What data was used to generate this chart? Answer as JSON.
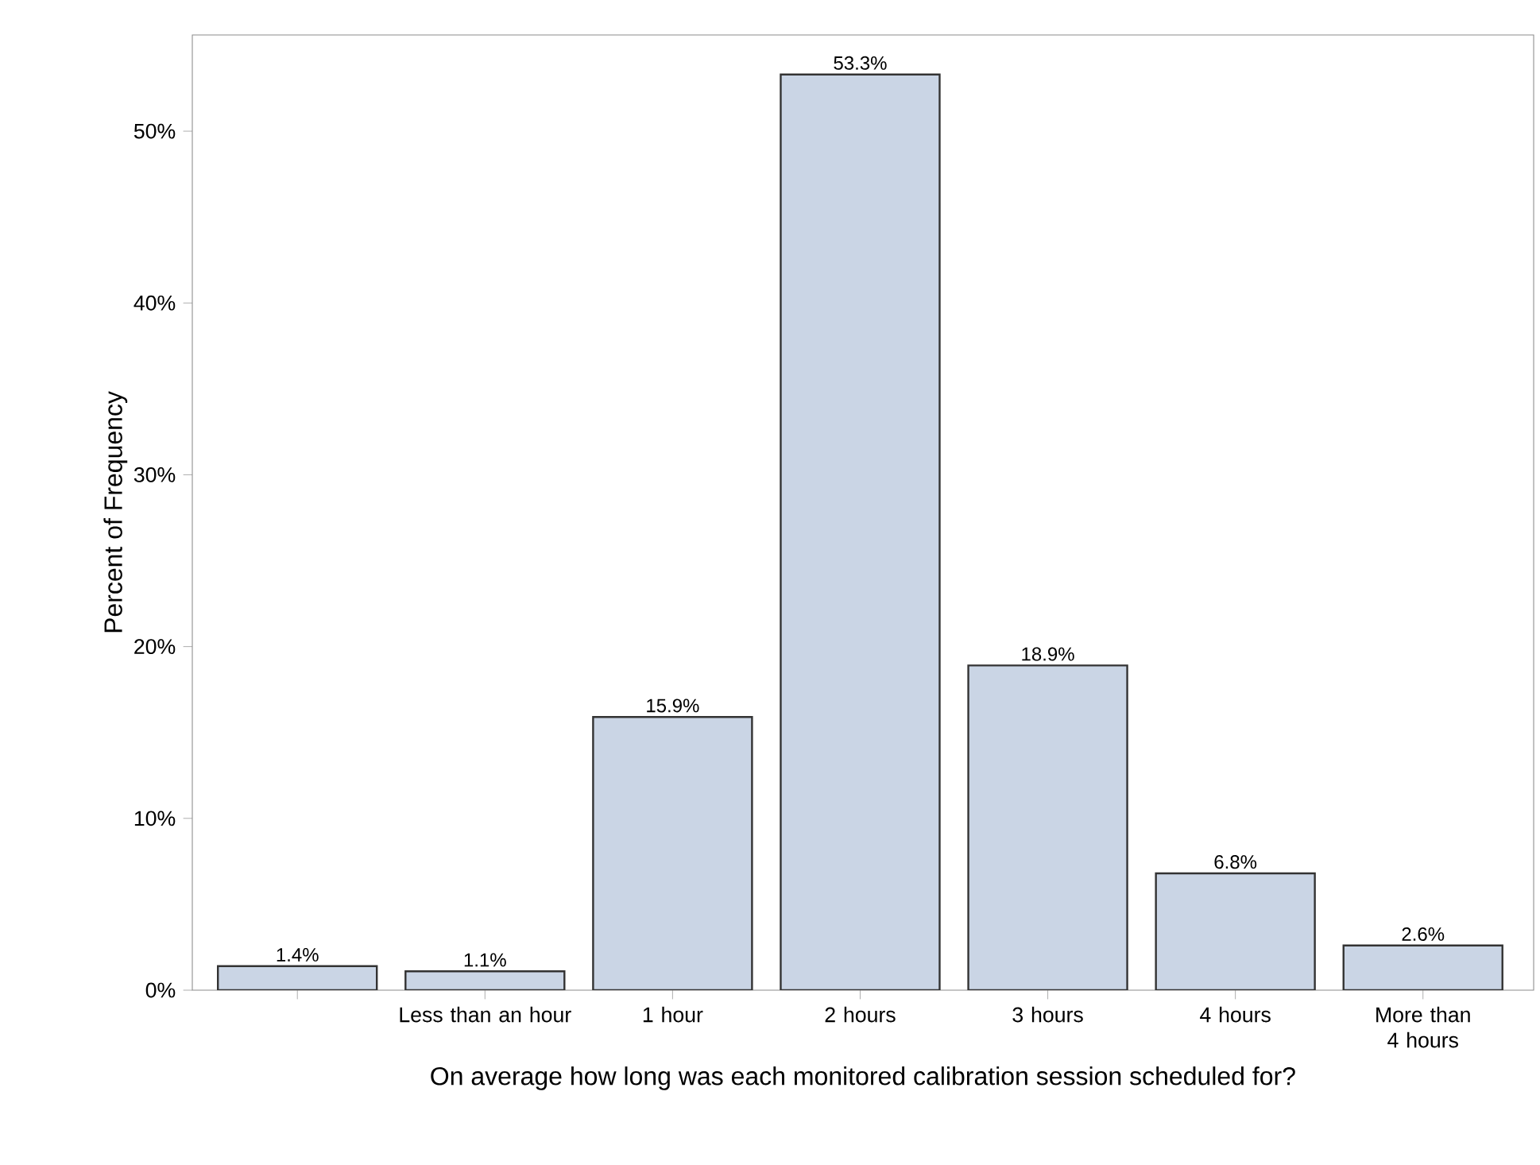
{
  "chart_data": {
    "type": "bar",
    "xlabel": "On average how long was each monitored calibration session scheduled for?",
    "ylabel": "Percent of Frequency",
    "categories": [
      null,
      "Less than an hour",
      "1 hour",
      "2 hours",
      "3 hours",
      "4 hours",
      "More than 4 hours"
    ],
    "values": [
      1.4,
      1.1,
      15.9,
      53.3,
      18.9,
      6.8,
      2.6
    ],
    "value_labels": [
      "1.4%",
      "1.1%",
      "15.9%",
      "53.3%",
      "18.9%",
      "6.8%",
      "2.6%"
    ],
    "color": "#cad5e5",
    "ylim": [
      0,
      55.6
    ],
    "yticks": [
      {
        "value": 0,
        "label": "0%"
      },
      {
        "value": 10,
        "label": "10%"
      },
      {
        "value": 20,
        "label": "20%"
      },
      {
        "value": 30,
        "label": "30%"
      },
      {
        "value": 40,
        "label": "40%"
      },
      {
        "value": 50,
        "label": "50%"
      }
    ],
    "grid": false
  }
}
